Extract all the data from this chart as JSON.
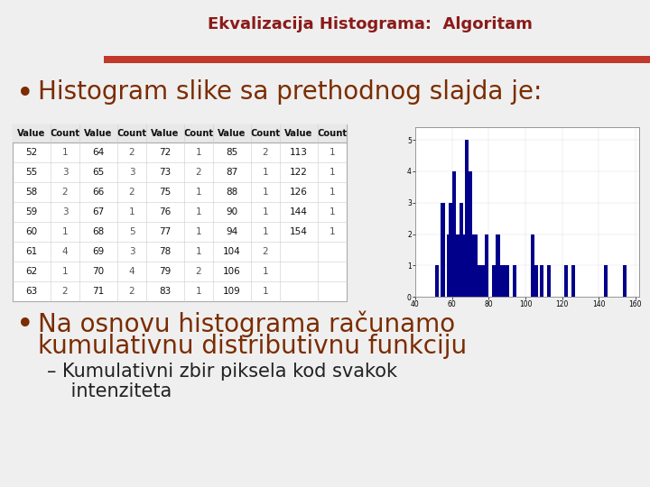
{
  "title": "Ekvalizacija Histograma:  Algoritam",
  "title_color": "#8B1A1A",
  "header_bar_color": "#C0392B",
  "bg_color": "#EFEFEF",
  "white": "#FFFFFF",
  "bullet1": "Histogram slike sa prethodnog slajda je:",
  "bullet1_color": "#7B2C00",
  "bullet2_line1": "Na osnovu histograma računamo",
  "bullet2_line2": "kumulativnu distributivnu funkciju",
  "bullet2_color": "#7B2C00",
  "sub_bullet": "– Kumulativni zbir piksela kod svakok",
  "sub_bullet2": "    intenziteta",
  "table_headers": [
    "Value",
    "Count",
    "Value",
    "Count",
    "Value",
    "Count",
    "Value",
    "Count",
    "Value",
    "Count"
  ],
  "table_rows": [
    [
      52,
      1,
      64,
      2,
      72,
      1,
      85,
      2,
      113,
      1
    ],
    [
      55,
      3,
      65,
      3,
      73,
      2,
      87,
      1,
      122,
      1
    ],
    [
      58,
      2,
      66,
      2,
      75,
      1,
      88,
      1,
      126,
      1
    ],
    [
      59,
      3,
      67,
      1,
      76,
      1,
      90,
      1,
      144,
      1
    ],
    [
      60,
      1,
      68,
      5,
      77,
      1,
      94,
      1,
      154,
      1
    ],
    [
      61,
      4,
      69,
      3,
      78,
      1,
      104,
      2,
      null,
      null
    ],
    [
      62,
      1,
      70,
      4,
      79,
      2,
      106,
      1,
      null,
      null
    ],
    [
      63,
      2,
      71,
      2,
      83,
      1,
      109,
      1,
      null,
      null
    ]
  ],
  "hist_values": {
    "52": 1,
    "55": 3,
    "58": 2,
    "59": 3,
    "60": 1,
    "61": 4,
    "62": 1,
    "63": 2,
    "64": 2,
    "65": 3,
    "66": 2,
    "67": 1,
    "68": 5,
    "69": 3,
    "70": 4,
    "71": 2,
    "72": 1,
    "73": 2,
    "75": 1,
    "76": 1,
    "77": 1,
    "78": 1,
    "79": 2,
    "83": 1,
    "85": 2,
    "87": 1,
    "88": 1,
    "90": 1,
    "94": 1,
    "104": 2,
    "106": 1,
    "109": 1,
    "113": 1,
    "122": 1,
    "126": 1,
    "144": 1,
    "154": 1
  },
  "hist_color": "#00008B",
  "hist_xlim": [
    40,
    162
  ],
  "hist_ylim": [
    0,
    5.4
  ],
  "hist_xticks": [
    40,
    60,
    80,
    100,
    120,
    140,
    160
  ],
  "hist_yticks": [
    0,
    1,
    2,
    3,
    4,
    5
  ]
}
